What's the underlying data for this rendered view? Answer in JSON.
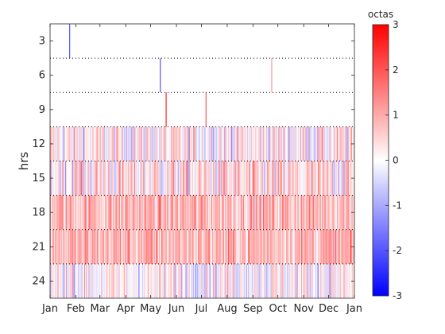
{
  "chart_data": {
    "type": "heatmap",
    "title": "",
    "xlabel": "",
    "ylabel": "hrs",
    "x_domain": [
      "2020-01-01",
      "2021-01-01"
    ],
    "x_tick_dates": [
      "2020-01-01",
      "2020-02-01",
      "2020-03-01",
      "2020-04-01",
      "2020-05-01",
      "2020-06-01",
      "2020-07-01",
      "2020-08-01",
      "2020-09-01",
      "2020-10-01",
      "2020-11-01",
      "2020-12-01",
      "2021-01-01"
    ],
    "x_tick_labels": [
      "Jan",
      "Feb",
      "Mar",
      "Apr",
      "May",
      "Jun",
      "Jul",
      "Aug",
      "Sep",
      "Oct",
      "Nov",
      "Dec",
      "Jan"
    ],
    "y_range": [
      1.5,
      25.5
    ],
    "y_reversed": true,
    "y_ticks": [
      3,
      6,
      9,
      12,
      15,
      18,
      21,
      24
    ],
    "row_boundaries_hrs": [
      4.5,
      7.5,
      10.5,
      13.5,
      16.5,
      19.5,
      22.5
    ],
    "rows": [
      {
        "hours": [
          1.5,
          4.5
        ],
        "mean": 0.0,
        "spread": 0.0
      },
      {
        "hours": [
          4.5,
          7.5
        ],
        "mean": 0.0,
        "spread": 0.0
      },
      {
        "hours": [
          7.5,
          10.5
        ],
        "mean": 0.0,
        "spread": 0.0
      },
      {
        "hours": [
          10.5,
          13.5
        ],
        "mean": 0.15,
        "spread": 0.9
      },
      {
        "hours": [
          13.5,
          16.5
        ],
        "mean": 0.3,
        "spread": 1.0
      },
      {
        "hours": [
          16.5,
          19.5
        ],
        "mean": 0.85,
        "spread": 0.75
      },
      {
        "hours": [
          19.5,
          22.5
        ],
        "mean": 0.85,
        "spread": 0.75
      },
      {
        "hours": [
          22.5,
          25.5
        ],
        "mean": 0.1,
        "spread": 0.8
      }
    ],
    "spikes": [
      {
        "date": "2020-01-24",
        "hours": [
          1.5,
          4.5
        ],
        "value": -2.0
      },
      {
        "date": "2020-05-12",
        "hours": [
          4.5,
          7.5
        ],
        "value": -2.0
      },
      {
        "date": "2020-05-19",
        "hours": [
          7.5,
          10.5
        ],
        "value": 2.6
      },
      {
        "date": "2020-07-06",
        "hours": [
          7.5,
          10.5
        ],
        "value": 2.0
      },
      {
        "date": "2020-09-23",
        "hours": [
          4.5,
          7.5
        ],
        "value": 1.2
      }
    ],
    "colorbar": {
      "label": "octas",
      "range": [
        -3,
        3
      ],
      "ticks": [
        3,
        2,
        1,
        0,
        -1,
        -2,
        -3
      ],
      "colors": {
        "low": "#0000ff",
        "mid": "#ffffff",
        "high": "#ff0000"
      }
    },
    "grid": "dotted lines at row boundaries"
  }
}
